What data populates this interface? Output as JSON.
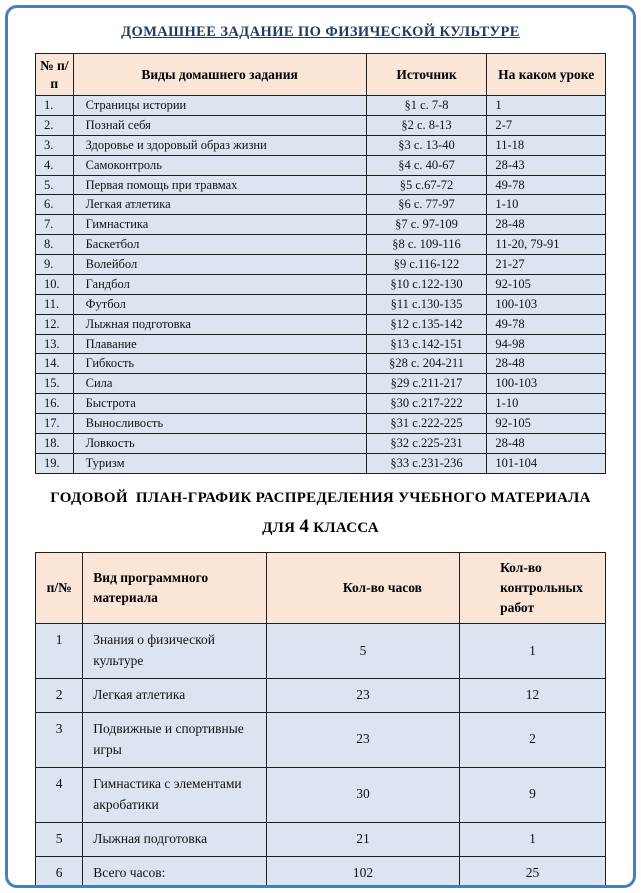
{
  "doc": {
    "title1": "ДОМАШНЕЕ ЗАДАНИЕ ПО ФИЗИЧЕСКОЙ КУЛЬТУРЕ",
    "title2_line1": "ГОДОВОЙ  ПЛАН-ГРАФИК РАСПРЕДЕЛЕНИЯ УЧЕБНОГО МАТЕРИАЛА",
    "title2_line2_pre": "ДЛЯ",
    "title2_grade": "4",
    "title2_line2_post": "КЛАССА"
  },
  "colors": {
    "frame_border": "#4a7ebb",
    "title_color": "#1f3864",
    "header_bg": "#fbe5d6",
    "cell_bg": "#dbe5f1",
    "footer_strip_bg": "#cfe0f0"
  },
  "homework_table": {
    "headers": [
      "№ п/п",
      "Виды домашнего задания",
      "Источник",
      "На каком уроке"
    ],
    "rows": [
      [
        "1.",
        "Страницы истории",
        "§1 с. 7-8",
        "1"
      ],
      [
        "2.",
        "Познай себя",
        "§2 с. 8-13",
        "2-7"
      ],
      [
        "3.",
        "Здоровье и здоровый образ жизни",
        "§3 с. 13-40",
        "11-18"
      ],
      [
        "4.",
        "Самоконтроль",
        "§4 с. 40-67",
        "28-43"
      ],
      [
        "5.",
        "Первая помощь при травмах",
        "§5 с.67-72",
        "49-78"
      ],
      [
        "6.",
        "Легкая атлетика",
        "§6 с. 77-97",
        "1-10"
      ],
      [
        "7.",
        "Гимнастика",
        "§7 с. 97-109",
        "28-48"
      ],
      [
        "8.",
        "Баскетбол",
        "§8 с. 109-116",
        "11-20, 79-91"
      ],
      [
        "9.",
        "Волейбол",
        "§9 с.116-122",
        "21-27"
      ],
      [
        "10.",
        "Гандбол",
        "§10 с.122-130",
        "92-105"
      ],
      [
        "11.",
        "Футбол",
        "§11 с.130-135",
        "100-103"
      ],
      [
        "12.",
        "Лыжная подготовка",
        "§12 с.135-142",
        "49-78"
      ],
      [
        "13.",
        "Плавание",
        "§13 с.142-151",
        "94-98"
      ],
      [
        "14.",
        "Гибкость",
        "§28 с. 204-211",
        "28-48"
      ],
      [
        "15.",
        "Сила",
        "§29 с.211-217",
        "100-103"
      ],
      [
        "16.",
        "Быстрота",
        "§30 с.217-222",
        "1-10"
      ],
      [
        "17.",
        "Выносливость",
        "§31 с.222-225",
        "92-105"
      ],
      [
        "18.",
        "Ловкость",
        "§32 с.225-231",
        "28-48"
      ],
      [
        "19.",
        "Туризм",
        "§33 с.231-236",
        "101-104"
      ]
    ]
  },
  "plan_table": {
    "headers": [
      "п/№",
      "Вид программного материала",
      "Кол-во часов",
      "Кол-во контрольных работ"
    ],
    "rows": [
      [
        "1",
        "Знания о физической культуре",
        "5",
        "1"
      ],
      [
        "2",
        "Легкая атлетика",
        "23",
        "12"
      ],
      [
        "3",
        "Подвижные и спортивные игры",
        "23",
        "2"
      ],
      [
        "4",
        "Гимнастика с элементами акробатики",
        "30",
        "9"
      ],
      [
        "5",
        "Лыжная подготовка",
        "21",
        "1"
      ],
      [
        "6",
        "Всего часов:",
        "102",
        "25"
      ]
    ]
  }
}
